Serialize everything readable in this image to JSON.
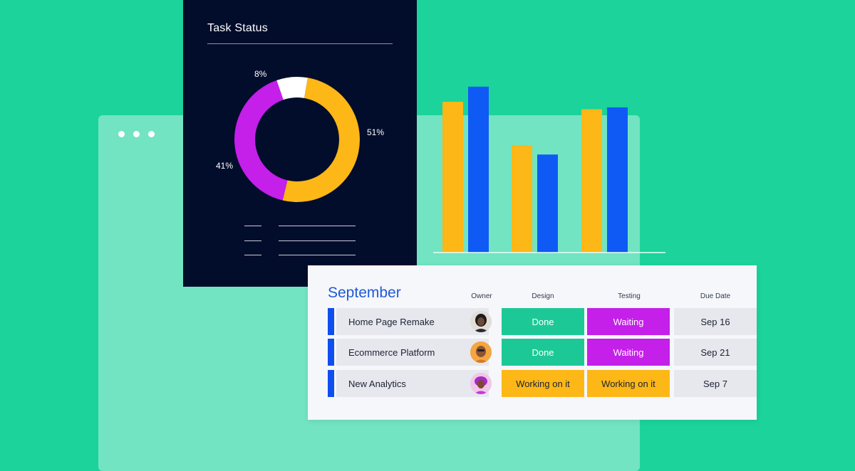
{
  "task_status": {
    "title": "Task Status",
    "colors": {
      "orange": "#fdb717",
      "purple": "#c51fea",
      "white": "#ffffff"
    },
    "slices": [
      {
        "label": "51%",
        "value": 51,
        "color": "#fdb717"
      },
      {
        "label": "41%",
        "value": 41,
        "color": "#c51fea"
      },
      {
        "label": "8%",
        "value": 8,
        "color": "#ffffff"
      }
    ]
  },
  "chart_data": {
    "type": "bar",
    "categories": [
      "",
      "",
      ""
    ],
    "series": [
      {
        "values": [
          80,
          57,
          76
        ],
        "color": "#fdb717"
      },
      {
        "values": [
          88,
          52,
          77
        ],
        "color": "#0f5af5"
      }
    ],
    "ylim": [
      0,
      100
    ],
    "grid": false
  },
  "board": {
    "group_title": "September",
    "columns": {
      "owner": "Owner",
      "design": "Design",
      "testing": "Testing",
      "due": "Due Date"
    },
    "rows": [
      {
        "name": "Home Page Remake",
        "design": "Done",
        "testing": "Waiting",
        "due": "Sep 16",
        "avatar": "avatar-1-icon"
      },
      {
        "name": "Ecommerce Platform",
        "design": "Done",
        "testing": "Waiting",
        "due": "Sep 21",
        "avatar": "avatar-2-icon"
      },
      {
        "name": "New Analytics",
        "design": "Working on it",
        "testing": "Working on it",
        "due": "Sep 7",
        "avatar": "avatar-3-icon"
      }
    ],
    "status_colors": {
      "Done": "#1cc996",
      "Waiting": "#c51fea",
      "Working on it": "#fdb717"
    }
  }
}
